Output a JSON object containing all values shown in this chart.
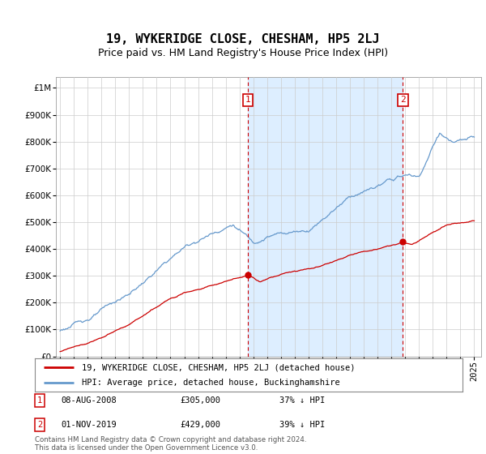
{
  "title": "19, WYKERIDGE CLOSE, CHESHAM, HP5 2LJ",
  "subtitle": "Price paid vs. HM Land Registry's House Price Index (HPI)",
  "legend_line1": "19, WYKERIDGE CLOSE, CHESHAM, HP5 2LJ (detached house)",
  "legend_line2": "HPI: Average price, detached house, Buckinghamshire",
  "footnote": "Contains HM Land Registry data © Crown copyright and database right 2024.\nThis data is licensed under the Open Government Licence v3.0.",
  "sale1_date": 2008.6,
  "sale1_label": "08-AUG-2008",
  "sale1_price": 305000,
  "sale1_text": "37% ↓ HPI",
  "sale2_date": 2019.83,
  "sale2_label": "01-NOV-2019",
  "sale2_price": 429000,
  "sale2_text": "39% ↓ HPI",
  "red_line_color": "#cc0000",
  "blue_line_color": "#6699cc",
  "shade_color": "#ddeeff",
  "dashed_color": "#cc0000",
  "background_color": "#ffffff",
  "grid_color": "#cccccc",
  "ylim_max": 1000000,
  "xlim_start": 1994.7,
  "xlim_end": 2025.5,
  "title_fontsize": 11,
  "subtitle_fontsize": 9,
  "tick_fontsize": 7.5
}
